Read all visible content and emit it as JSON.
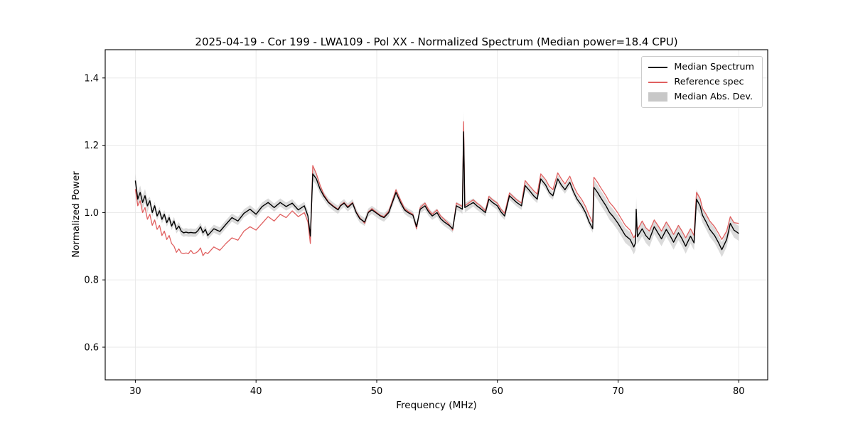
{
  "figure": {
    "title": "2025-04-19 - Cor 199 - LWA109 - Pol XX - Normalized Spectrum (Median power=18.4 CPU)",
    "xlabel": "Frequency (MHz)",
    "ylabel": "Normalized Power"
  },
  "legend": {
    "items": [
      {
        "label": "Median Spectrum",
        "type": "line",
        "color": "#000000"
      },
      {
        "label": "Reference spec",
        "type": "line",
        "color": "#e06060"
      },
      {
        "label": "Median Abs. Dev.",
        "type": "patch",
        "color": "#c8c8c8"
      }
    ]
  },
  "chart_data": {
    "type": "line",
    "title": "2025-04-19 - Cor 199 - LWA109 - Pol XX - Normalized Spectrum (Median power=18.4 CPU)",
    "xlabel": "Frequency (MHz)",
    "ylabel": "Normalized Power",
    "xlim": [
      27.5,
      82.4
    ],
    "ylim": [
      0.503,
      1.484
    ],
    "xticks": [
      30,
      40,
      50,
      60,
      70,
      80
    ],
    "yticks": [
      0.6,
      0.8,
      1.0,
      1.2,
      1.4
    ],
    "grid": true,
    "legend_position": "upper right",
    "x": [
      30.0,
      30.2,
      30.4,
      30.6,
      30.8,
      31.0,
      31.2,
      31.4,
      31.6,
      31.8,
      32.0,
      32.2,
      32.4,
      32.6,
      32.8,
      33.0,
      33.2,
      33.4,
      33.6,
      33.8,
      34.0,
      34.2,
      34.4,
      34.6,
      34.8,
      35.0,
      35.2,
      35.4,
      35.6,
      35.8,
      36.0,
      36.5,
      37.0,
      37.5,
      38.0,
      38.5,
      39.0,
      39.5,
      40.0,
      40.5,
      41.0,
      41.5,
      42.0,
      42.5,
      43.0,
      43.5,
      44.0,
      44.3,
      44.5,
      44.7,
      45.0,
      45.3,
      45.6,
      46.0,
      46.4,
      46.8,
      47.0,
      47.3,
      47.6,
      48.0,
      48.3,
      48.6,
      49.0,
      49.3,
      49.6,
      50.0,
      50.3,
      50.6,
      51.0,
      51.3,
      51.6,
      52.0,
      52.3,
      52.6,
      53.0,
      53.3,
      53.6,
      54.0,
      54.3,
      54.6,
      55.0,
      55.3,
      55.6,
      56.0,
      56.3,
      56.6,
      57.0,
      57.1,
      57.2,
      57.3,
      58.0,
      58.3,
      58.6,
      59.0,
      59.3,
      59.6,
      60.0,
      60.3,
      60.6,
      61.0,
      61.3,
      61.6,
      62.0,
      62.3,
      62.6,
      63.0,
      63.3,
      63.6,
      64.0,
      64.3,
      64.6,
      65.0,
      65.3,
      65.6,
      66.0,
      66.3,
      66.6,
      67.0,
      67.3,
      67.6,
      67.9,
      68.0,
      68.3,
      68.6,
      69.0,
      69.3,
      69.6,
      70.0,
      70.3,
      70.6,
      71.0,
      71.3,
      71.45,
      71.5,
      71.6,
      72.0,
      72.3,
      72.6,
      73.0,
      73.3,
      73.6,
      74.0,
      74.3,
      74.6,
      75.0,
      75.3,
      75.6,
      76.0,
      76.3,
      76.5,
      76.8,
      77.0,
      77.3,
      77.6,
      78.0,
      78.3,
      78.6,
      79.0,
      79.3,
      79.6,
      80.0
    ],
    "series": [
      {
        "name": "Median Spectrum",
        "color": "#000000",
        "values": [
          1.095,
          1.04,
          1.06,
          1.03,
          1.05,
          1.02,
          1.035,
          1.0,
          1.02,
          0.99,
          1.005,
          0.98,
          0.995,
          0.97,
          0.985,
          0.96,
          0.975,
          0.95,
          0.96,
          0.945,
          0.94,
          0.942,
          0.94,
          0.941,
          0.94,
          0.94,
          0.947,
          0.958,
          0.94,
          0.95,
          0.932,
          0.952,
          0.944,
          0.965,
          0.985,
          0.975,
          0.998,
          1.01,
          0.995,
          1.018,
          1.03,
          1.015,
          1.03,
          1.018,
          1.028,
          1.008,
          1.02,
          0.99,
          0.93,
          1.115,
          1.1,
          1.07,
          1.05,
          1.03,
          1.018,
          1.008,
          1.02,
          1.028,
          1.015,
          1.028,
          1.0,
          0.982,
          0.972,
          1.0,
          1.008,
          0.998,
          0.99,
          0.985,
          1.0,
          1.03,
          1.06,
          1.028,
          1.008,
          1.0,
          0.992,
          0.958,
          1.01,
          1.02,
          1.002,
          0.99,
          1.0,
          0.982,
          0.972,
          0.962,
          0.952,
          1.02,
          1.012,
          1.01,
          1.24,
          1.015,
          1.03,
          1.02,
          1.012,
          1.0,
          1.04,
          1.03,
          1.02,
          1.002,
          0.99,
          1.05,
          1.04,
          1.03,
          1.02,
          1.08,
          1.068,
          1.05,
          1.04,
          1.1,
          1.082,
          1.06,
          1.05,
          1.1,
          1.082,
          1.068,
          1.09,
          1.062,
          1.04,
          1.02,
          1.0,
          0.972,
          0.952,
          1.075,
          1.06,
          1.042,
          1.02,
          1.0,
          0.988,
          0.968,
          0.95,
          0.932,
          0.92,
          0.898,
          0.91,
          1.01,
          0.928,
          0.952,
          0.932,
          0.92,
          0.958,
          0.94,
          0.922,
          0.95,
          0.932,
          0.912,
          0.94,
          0.922,
          0.9,
          0.93,
          0.91,
          1.04,
          1.02,
          0.992,
          0.972,
          0.95,
          0.932,
          0.912,
          0.89,
          0.92,
          0.968,
          0.948,
          0.938
        ]
      },
      {
        "name": "Reference spec",
        "color": "#e06060",
        "values": [
          1.07,
          1.02,
          1.035,
          1.0,
          1.015,
          0.98,
          0.995,
          0.962,
          0.978,
          0.95,
          0.962,
          0.932,
          0.945,
          0.92,
          0.932,
          0.908,
          0.9,
          0.882,
          0.892,
          0.88,
          0.878,
          0.88,
          0.878,
          0.888,
          0.878,
          0.88,
          0.885,
          0.895,
          0.872,
          0.882,
          0.878,
          0.898,
          0.888,
          0.908,
          0.925,
          0.918,
          0.945,
          0.958,
          0.948,
          0.968,
          0.988,
          0.975,
          0.995,
          0.985,
          1.005,
          0.988,
          1.0,
          0.972,
          0.908,
          1.14,
          1.115,
          1.082,
          1.055,
          1.032,
          1.02,
          1.01,
          1.022,
          1.03,
          1.018,
          1.03,
          1.002,
          0.985,
          0.968,
          1.002,
          1.012,
          1.0,
          0.992,
          0.988,
          1.004,
          1.035,
          1.068,
          1.035,
          1.012,
          1.004,
          0.995,
          0.952,
          1.015,
          1.028,
          1.008,
          0.995,
          1.008,
          0.99,
          0.98,
          0.965,
          0.948,
          1.028,
          1.02,
          1.018,
          1.27,
          1.02,
          1.038,
          1.028,
          1.02,
          1.005,
          1.048,
          1.038,
          1.028,
          1.01,
          0.998,
          1.058,
          1.048,
          1.038,
          1.028,
          1.095,
          1.082,
          1.065,
          1.055,
          1.115,
          1.098,
          1.078,
          1.068,
          1.118,
          1.1,
          1.085,
          1.108,
          1.08,
          1.058,
          1.038,
          1.018,
          0.992,
          0.97,
          1.105,
          1.09,
          1.072,
          1.05,
          1.03,
          1.018,
          0.998,
          0.98,
          0.962,
          0.948,
          0.925,
          0.935,
          0.975,
          0.948,
          0.975,
          0.955,
          0.945,
          0.978,
          0.962,
          0.945,
          0.972,
          0.955,
          0.935,
          0.962,
          0.945,
          0.925,
          0.952,
          0.932,
          1.06,
          1.042,
          1.012,
          0.995,
          0.975,
          0.958,
          0.94,
          0.92,
          0.945,
          0.988,
          0.97,
          0.968
        ]
      }
    ],
    "band": {
      "name": "Median Abs. Dev.",
      "color": "#c8c8c8",
      "center": "Median Spectrum",
      "half_width": [
        0.02,
        0.02,
        0.02,
        0.02,
        0.02,
        0.02,
        0.012,
        0.012,
        0.012,
        0.012,
        0.012,
        0.012,
        0.012,
        0.012,
        0.012,
        0.012,
        0.012,
        0.012,
        0.012,
        0.012,
        0.012,
        0.012,
        0.012,
        0.012,
        0.012,
        0.012,
        0.012,
        0.012,
        0.012,
        0.012,
        0.012,
        0.012,
        0.012,
        0.012,
        0.012,
        0.012,
        0.012,
        0.012,
        0.012,
        0.012,
        0.012,
        0.012,
        0.012,
        0.012,
        0.012,
        0.012,
        0.012,
        0.015,
        0.02,
        0.02,
        0.018,
        0.015,
        0.012,
        0.012,
        0.012,
        0.012,
        0.012,
        0.012,
        0.012,
        0.012,
        0.012,
        0.012,
        0.012,
        0.012,
        0.012,
        0.012,
        0.012,
        0.012,
        0.012,
        0.012,
        0.012,
        0.012,
        0.012,
        0.012,
        0.012,
        0.012,
        0.012,
        0.012,
        0.012,
        0.012,
        0.012,
        0.012,
        0.012,
        0.012,
        0.012,
        0.012,
        0.012,
        0.015,
        0.06,
        0.015,
        0.012,
        0.012,
        0.012,
        0.012,
        0.012,
        0.012,
        0.012,
        0.012,
        0.012,
        0.012,
        0.012,
        0.012,
        0.012,
        0.012,
        0.012,
        0.012,
        0.012,
        0.012,
        0.012,
        0.012,
        0.012,
        0.012,
        0.012,
        0.012,
        0.012,
        0.012,
        0.012,
        0.012,
        0.012,
        0.012,
        0.012,
        0.022,
        0.022,
        0.022,
        0.022,
        0.022,
        0.022,
        0.022,
        0.022,
        0.022,
        0.022,
        0.022,
        0.022,
        0.035,
        0.022,
        0.022,
        0.022,
        0.022,
        0.022,
        0.022,
        0.022,
        0.022,
        0.022,
        0.022,
        0.022,
        0.022,
        0.022,
        0.022,
        0.022,
        0.028,
        0.025,
        0.022,
        0.022,
        0.022,
        0.022,
        0.022,
        0.022,
        0.022,
        0.022,
        0.022,
        0.022
      ]
    }
  }
}
